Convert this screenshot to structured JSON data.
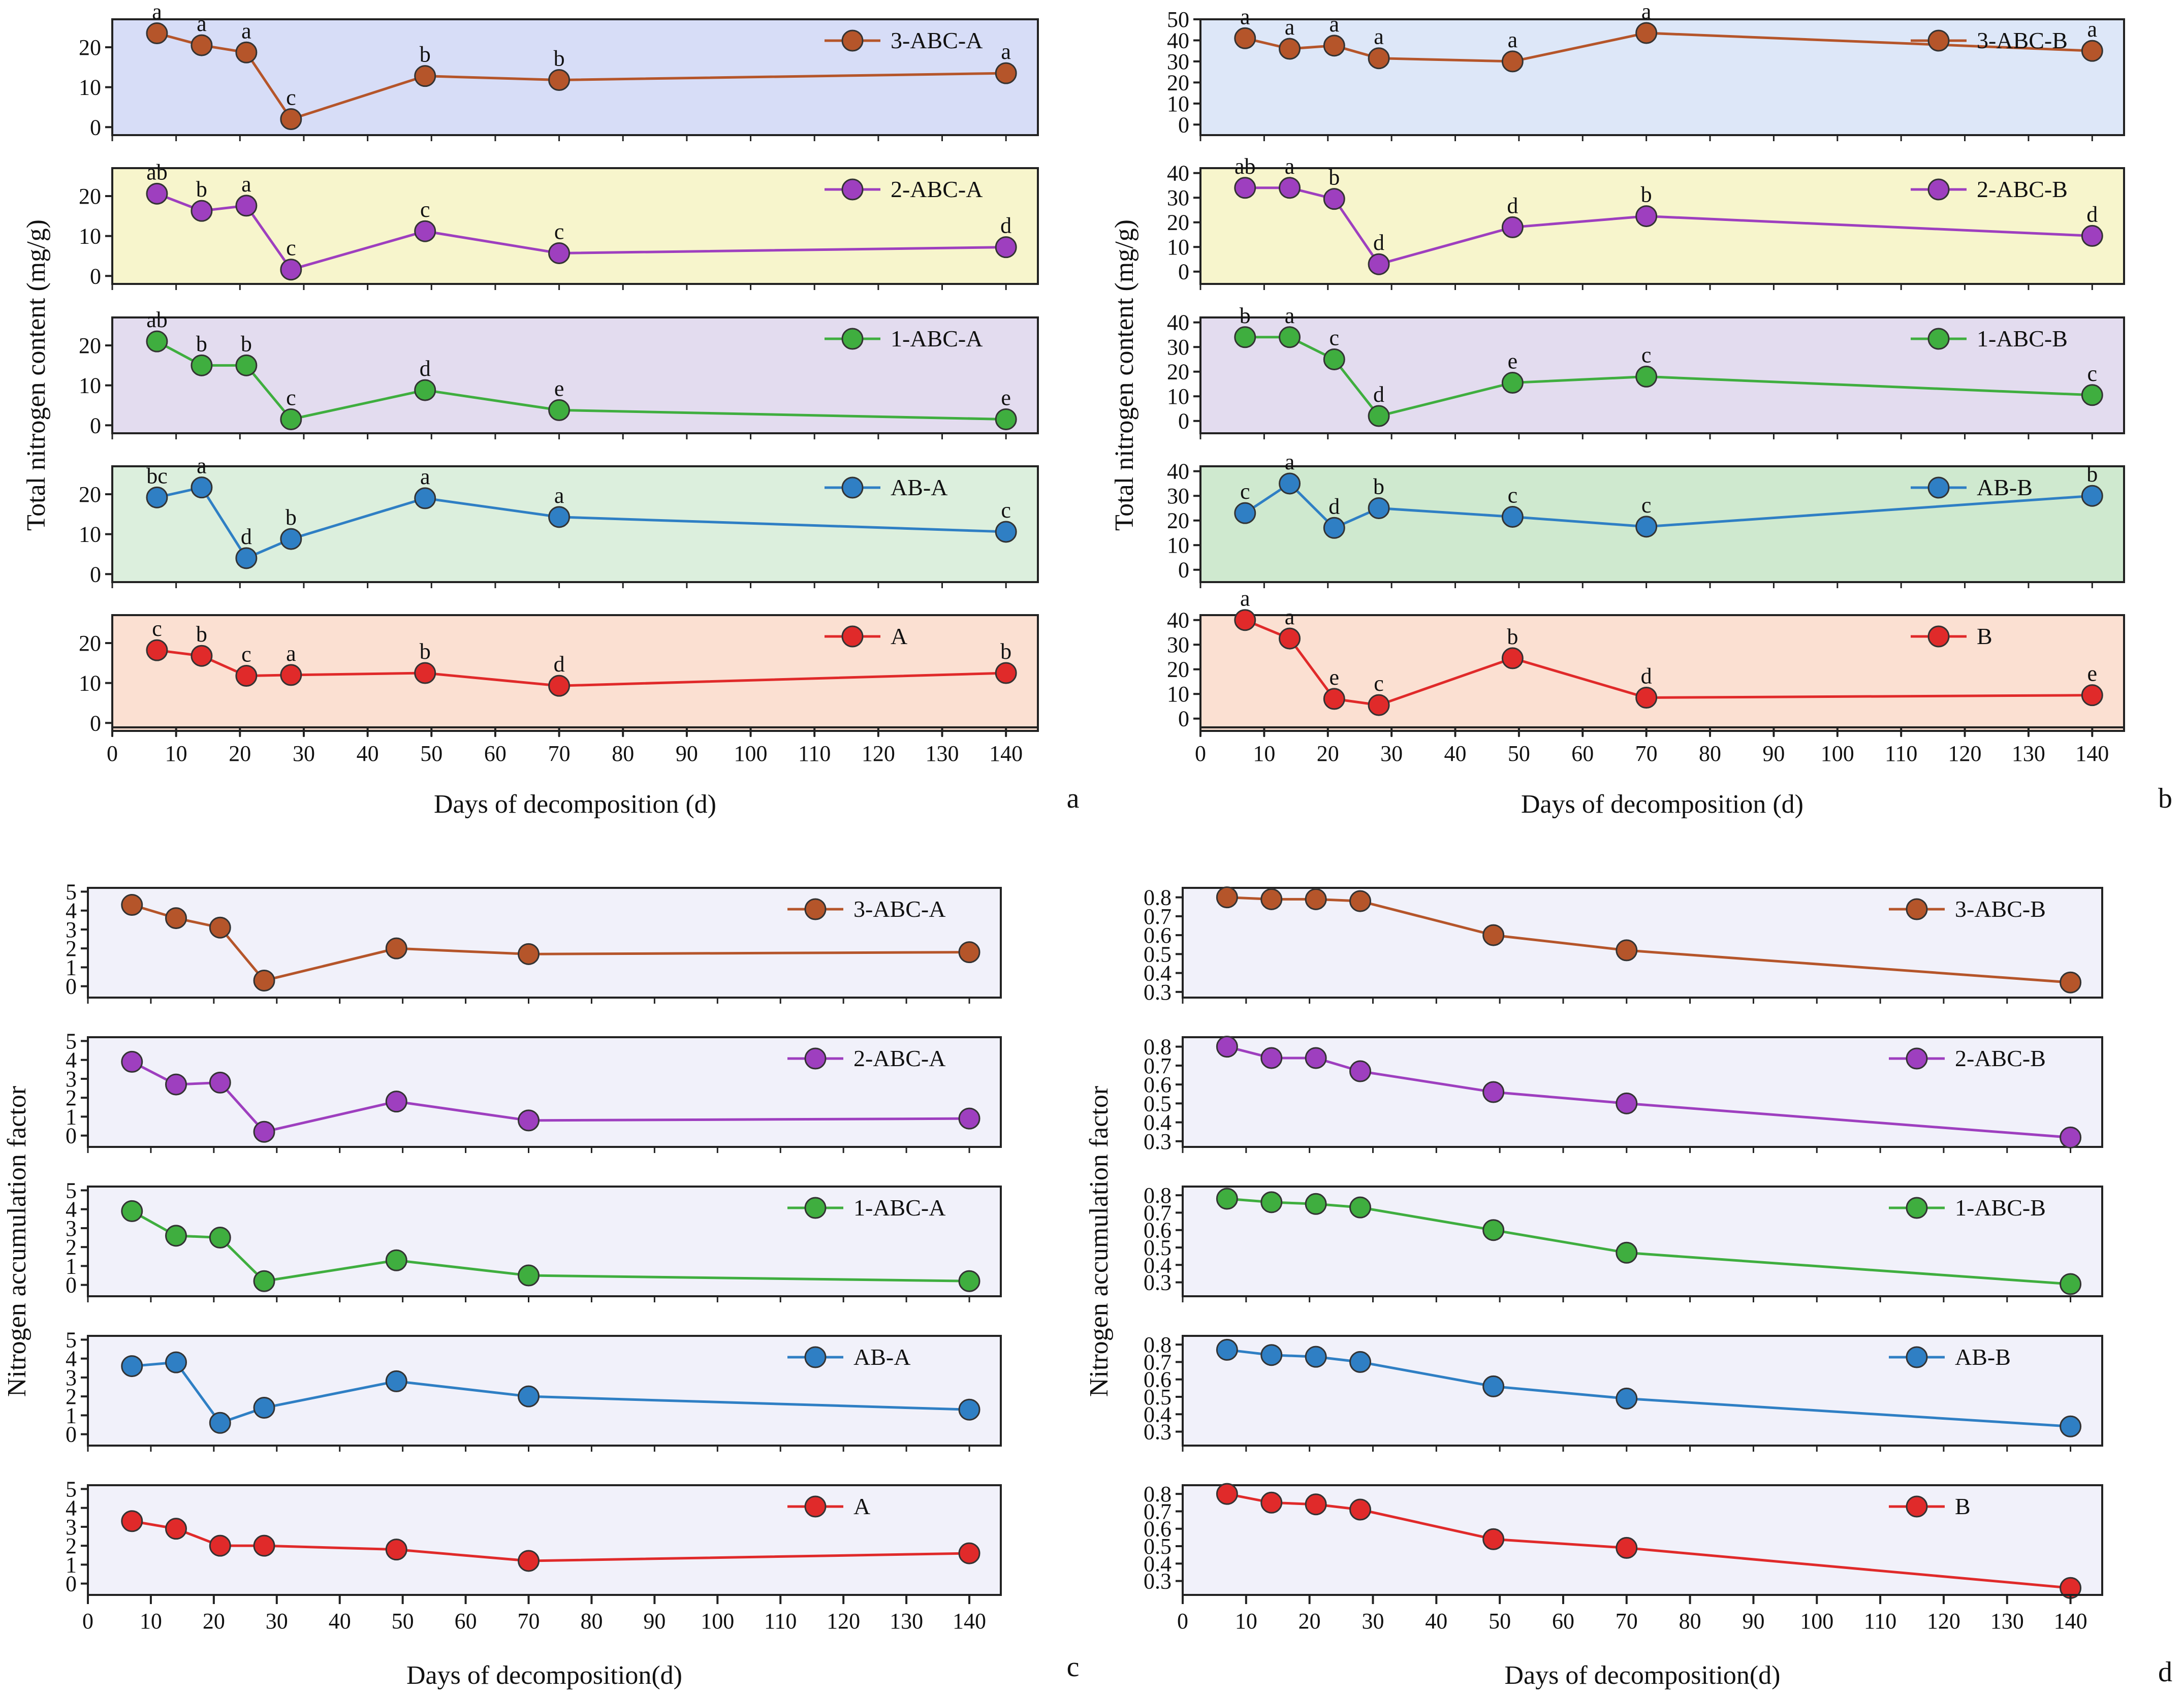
{
  "colors": {
    "brown": "#b5552a",
    "purple": "#9e3fbf",
    "green": "#3fae3f",
    "blue": "#2f7fc4",
    "red": "#e02a2a",
    "bg_blue": "#d7ddf7",
    "bg_yellow": "#f7f5cc",
    "bg_lavender": "#e3dcef",
    "bg_green": "#dcefdd",
    "bg_peach": "#fbe0d2",
    "bg_sky": "#dde7f8",
    "bg_green_b": "#cfe9cf",
    "bg_panel_light": "#f1f1fa"
  },
  "chart_data": [
    {
      "id": "a",
      "type": "line",
      "panel_label": "a",
      "xlabel": "Days of decomposition (d)",
      "ylabel": "Total nitrogen content (mg/g)",
      "x": [
        7,
        14,
        21,
        28,
        49,
        70,
        140
      ],
      "xlim": [
        0,
        145
      ],
      "xticks": [
        0,
        10,
        20,
        30,
        40,
        50,
        60,
        70,
        80,
        90,
        100,
        110,
        120,
        130,
        140
      ],
      "subplots": [
        {
          "name": "3-ABC-A",
          "color_key": "brown",
          "bg_key": "bg_blue",
          "ylim": [
            -2,
            27
          ],
          "yticks": [
            0,
            10,
            20
          ],
          "values": [
            23.5,
            20.5,
            18.7,
            2.0,
            12.8,
            11.8,
            13.5
          ],
          "labels": [
            "a",
            "a",
            "a",
            "c",
            "b",
            "b",
            "a"
          ]
        },
        {
          "name": "2-ABC-A",
          "color_key": "purple",
          "bg_key": "bg_yellow",
          "ylim": [
            -2,
            27
          ],
          "yticks": [
            0,
            10,
            20
          ],
          "values": [
            20.6,
            16.3,
            17.6,
            1.6,
            11.2,
            5.7,
            7.2
          ],
          "labels": [
            "ab",
            "b",
            "a",
            "c",
            "c",
            "c",
            "d"
          ]
        },
        {
          "name": "1-ABC-A",
          "color_key": "green",
          "bg_key": "bg_lavender",
          "ylim": [
            -2,
            27
          ],
          "yticks": [
            0,
            10,
            20
          ],
          "values": [
            21.0,
            15.0,
            15.0,
            1.5,
            8.8,
            3.8,
            1.5
          ],
          "labels": [
            "ab",
            "b",
            "b",
            "c",
            "d",
            "e",
            "e"
          ]
        },
        {
          "name": "AB-A",
          "color_key": "blue",
          "bg_key": "bg_green",
          "ylim": [
            -2,
            27
          ],
          "yticks": [
            0,
            10,
            20
          ],
          "values": [
            19.2,
            21.7,
            4.0,
            8.8,
            19.0,
            14.3,
            10.6
          ],
          "labels": [
            "bc",
            "a",
            "d",
            "b",
            "a",
            "a",
            "c"
          ]
        },
        {
          "name": "A",
          "color_key": "red",
          "bg_key": "bg_peach",
          "ylim": [
            -2,
            27
          ],
          "yticks": [
            0,
            10,
            20
          ],
          "values": [
            18.2,
            16.8,
            11.8,
            12.0,
            12.5,
            9.3,
            12.5
          ],
          "labels": [
            "c",
            "b",
            "c",
            "a",
            "b",
            "d",
            "b"
          ]
        }
      ]
    },
    {
      "id": "b",
      "type": "line",
      "panel_label": "b",
      "xlabel": "Days of decomposition (d)",
      "ylabel": "Total nitrogen content (mg/g)",
      "x": [
        7,
        14,
        21,
        28,
        49,
        70,
        140
      ],
      "xlim": [
        0,
        145
      ],
      "xticks": [
        0,
        10,
        20,
        30,
        40,
        50,
        60,
        70,
        80,
        90,
        100,
        110,
        120,
        130,
        140
      ],
      "subplots": [
        {
          "name": "3-ABC-B",
          "color_key": "brown",
          "bg_key": "bg_sky",
          "ylim": [
            -5,
            50
          ],
          "yticks": [
            0,
            10,
            20,
            30,
            40,
            50
          ],
          "values": [
            41.0,
            36.0,
            37.5,
            31.5,
            30.0,
            43.5,
            35.0
          ],
          "labels": [
            "a",
            "a",
            "a",
            "a",
            "a",
            "a",
            "a"
          ]
        },
        {
          "name": "2-ABC-B",
          "color_key": "purple",
          "bg_key": "bg_yellow",
          "ylim": [
            -5,
            42
          ],
          "yticks": [
            0,
            10,
            20,
            30,
            40
          ],
          "values": [
            34.0,
            34.0,
            29.5,
            3.0,
            18.0,
            22.5,
            14.5
          ],
          "labels": [
            "ab",
            "a",
            "b",
            "d",
            "d",
            "b",
            "d"
          ]
        },
        {
          "name": "1-ABC-B",
          "color_key": "green",
          "bg_key": "bg_lavender",
          "ylim": [
            -5,
            42
          ],
          "yticks": [
            0,
            10,
            20,
            30,
            40
          ],
          "values": [
            34.0,
            34.0,
            25.0,
            2.0,
            15.5,
            18.0,
            10.5
          ],
          "labels": [
            "b",
            "a",
            "c",
            "d",
            "e",
            "c",
            "c"
          ]
        },
        {
          "name": "AB-B",
          "color_key": "blue",
          "bg_key": "bg_green_b",
          "ylim": [
            -5,
            42
          ],
          "yticks": [
            0,
            10,
            20,
            30,
            40
          ],
          "values": [
            23.0,
            35.0,
            17.0,
            25.0,
            21.5,
            17.5,
            30.0
          ],
          "labels": [
            "c",
            "a",
            "d",
            "b",
            "c",
            "c",
            "b"
          ]
        },
        {
          "name": "B",
          "color_key": "red",
          "bg_key": "bg_peach",
          "ylim": [
            -5,
            42
          ],
          "yticks": [
            0,
            10,
            20,
            30,
            40
          ],
          "values": [
            40.0,
            32.5,
            8.0,
            5.5,
            24.5,
            8.5,
            9.5
          ],
          "labels": [
            "a",
            "a",
            "e",
            "c",
            "b",
            "d",
            "e"
          ]
        }
      ]
    },
    {
      "id": "c",
      "type": "line",
      "panel_label": "c",
      "xlabel": "Days of decomposition(d)",
      "ylabel": "Nitrogen accumulation factor",
      "x": [
        7,
        14,
        21,
        28,
        49,
        70,
        140
      ],
      "xlim": [
        0,
        145
      ],
      "xticks": [
        0,
        10,
        20,
        30,
        40,
        50,
        60,
        70,
        80,
        90,
        100,
        110,
        120,
        130,
        140
      ],
      "subplots": [
        {
          "name": "3-ABC-A",
          "color_key": "brown",
          "bg_key": "bg_panel_light",
          "ylim": [
            -0.6,
            5.2
          ],
          "yticks": [
            0,
            1,
            2,
            3,
            4,
            5
          ],
          "values": [
            4.3,
            3.6,
            3.1,
            0.3,
            2.0,
            1.7,
            1.8
          ],
          "labels": []
        },
        {
          "name": "2-ABC-A",
          "color_key": "purple",
          "bg_key": "bg_panel_light",
          "ylim": [
            -0.6,
            5.2
          ],
          "yticks": [
            0,
            1,
            2,
            3,
            4,
            5
          ],
          "values": [
            3.9,
            2.7,
            2.8,
            0.2,
            1.8,
            0.8,
            0.9
          ],
          "labels": []
        },
        {
          "name": "1-ABC-A",
          "color_key": "green",
          "bg_key": "bg_panel_light",
          "ylim": [
            -0.6,
            5.2
          ],
          "yticks": [
            0,
            1,
            2,
            3,
            4,
            5
          ],
          "values": [
            3.9,
            2.6,
            2.5,
            0.2,
            1.3,
            0.5,
            0.2
          ],
          "labels": []
        },
        {
          "name": "AB-A",
          "color_key": "blue",
          "bg_key": "bg_panel_light",
          "ylim": [
            -0.6,
            5.2
          ],
          "yticks": [
            0,
            1,
            2,
            3,
            4,
            5
          ],
          "values": [
            3.6,
            3.8,
            0.6,
            1.4,
            2.8,
            2.0,
            1.3
          ],
          "labels": []
        },
        {
          "name": "A",
          "color_key": "red",
          "bg_key": "bg_panel_light",
          "ylim": [
            -0.6,
            5.2
          ],
          "yticks": [
            0,
            1,
            2,
            3,
            4,
            5
          ],
          "values": [
            3.3,
            2.9,
            2.0,
            2.0,
            1.8,
            1.2,
            1.6
          ],
          "labels": []
        }
      ]
    },
    {
      "id": "d",
      "type": "line",
      "panel_label": "d",
      "xlabel": "Days of decomposition(d)",
      "ylabel": "Nitrogen accumulation factor",
      "x": [
        7,
        14,
        21,
        28,
        49,
        70,
        140
      ],
      "xlim": [
        0,
        145
      ],
      "xticks": [
        0,
        10,
        20,
        30,
        40,
        50,
        60,
        70,
        80,
        90,
        100,
        110,
        120,
        130,
        140
      ],
      "subplots": [
        {
          "name": "3-ABC-B",
          "color_key": "brown",
          "bg_key": "bg_panel_light",
          "ylim": [
            0.27,
            0.85
          ],
          "yticks": [
            0.3,
            0.4,
            0.5,
            0.6,
            0.7,
            0.8
          ],
          "values": [
            0.8,
            0.79,
            0.79,
            0.78,
            0.6,
            0.52,
            0.35
          ],
          "labels": []
        },
        {
          "name": "2-ABC-B",
          "color_key": "purple",
          "bg_key": "bg_panel_light",
          "ylim": [
            0.27,
            0.85
          ],
          "yticks": [
            0.3,
            0.4,
            0.5,
            0.6,
            0.7,
            0.8
          ],
          "values": [
            0.8,
            0.74,
            0.74,
            0.67,
            0.56,
            0.5,
            0.32
          ],
          "labels": []
        },
        {
          "name": "1-ABC-B",
          "color_key": "green",
          "bg_key": "bg_panel_light",
          "ylim": [
            0.22,
            0.85
          ],
          "yticks": [
            0.3,
            0.4,
            0.5,
            0.6,
            0.7,
            0.8
          ],
          "values": [
            0.78,
            0.76,
            0.75,
            0.73,
            0.6,
            0.47,
            0.29
          ],
          "labels": []
        },
        {
          "name": "AB-B",
          "color_key": "blue",
          "bg_key": "bg_panel_light",
          "ylim": [
            0.22,
            0.85
          ],
          "yticks": [
            0.3,
            0.4,
            0.5,
            0.6,
            0.7,
            0.8
          ],
          "values": [
            0.77,
            0.74,
            0.73,
            0.7,
            0.56,
            0.49,
            0.33
          ],
          "labels": []
        },
        {
          "name": "B",
          "color_key": "red",
          "bg_key": "bg_panel_light",
          "ylim": [
            0.22,
            0.85
          ],
          "yticks": [
            0.3,
            0.4,
            0.5,
            0.6,
            0.7,
            0.8
          ],
          "values": [
            0.8,
            0.75,
            0.74,
            0.71,
            0.54,
            0.49,
            0.26
          ],
          "labels": []
        }
      ]
    }
  ]
}
